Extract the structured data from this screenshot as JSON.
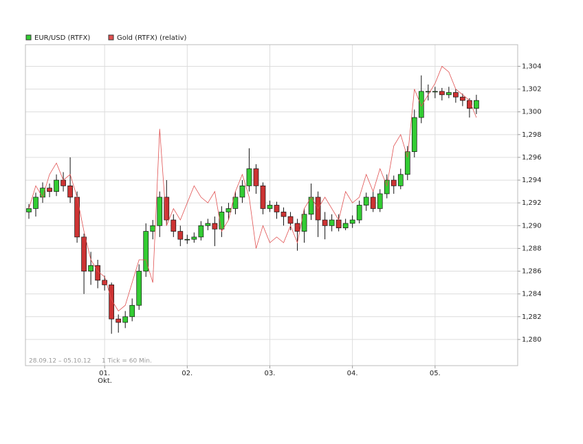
{
  "chart_data": {
    "type": "candlestick",
    "x": [
      -22,
      -20,
      -18,
      -16,
      -14,
      -12,
      -10,
      -8,
      -6,
      -4,
      -2,
      0,
      2,
      4,
      6,
      8,
      10,
      12,
      14,
      16,
      18,
      20,
      22,
      24,
      26,
      28,
      30,
      32,
      34,
      36,
      38,
      40,
      42,
      44,
      46,
      48,
      50,
      52,
      54,
      56,
      58,
      60,
      62,
      64,
      66,
      68,
      70,
      72,
      74,
      76,
      78,
      80,
      82,
      84,
      86,
      88,
      90,
      92,
      94,
      96,
      98,
      100,
      102,
      104,
      106,
      108
    ],
    "xlim": [
      -23,
      120
    ],
    "xticks": [
      {
        "value": 0,
        "label": "01."
      },
      {
        "value": 24,
        "label": "02."
      },
      {
        "value": 48,
        "label": "03."
      },
      {
        "value": 72,
        "label": "04."
      },
      {
        "value": 96,
        "label": "05."
      }
    ],
    "x_sublabel": "Okt.",
    "ylim": [
      1.2777,
      1.3059
    ],
    "yticks": [
      {
        "value": 1.28,
        "label": "1,280"
      },
      {
        "value": 1.282,
        "label": "1,282"
      },
      {
        "value": 1.284,
        "label": "1,284"
      },
      {
        "value": 1.286,
        "label": "1,286"
      },
      {
        "value": 1.288,
        "label": "1,288"
      },
      {
        "value": 1.29,
        "label": "1,290"
      },
      {
        "value": 1.292,
        "label": "1,292"
      },
      {
        "value": 1.294,
        "label": "1,294"
      },
      {
        "value": 1.296,
        "label": "1,296"
      },
      {
        "value": 1.298,
        "label": "1,298"
      },
      {
        "value": 1.3,
        "label": "1,300"
      },
      {
        "value": 1.302,
        "label": "1,302"
      },
      {
        "value": 1.304,
        "label": "1,304"
      }
    ],
    "grid": true,
    "date_range": "28.09.12 – 05.10.12",
    "interval_note": "1 Tick = 60 Min.",
    "series": [
      {
        "name": "EUR/USD (RTFX)",
        "type": "candlestick",
        "up_color": "#33cc33",
        "down_color": "#cc3333",
        "open": [
          1.2912,
          1.2915,
          1.2925,
          1.2933,
          1.293,
          1.294,
          1.2935,
          1.2925,
          1.289,
          1.286,
          1.2865,
          1.2852,
          1.2848,
          1.2818,
          1.2815,
          1.282,
          1.283,
          1.286,
          1.2895,
          1.29,
          1.2925,
          1.2905,
          1.2895,
          1.2888,
          1.2888,
          1.289,
          1.29,
          1.2902,
          1.2897,
          1.2912,
          1.2915,
          1.2925,
          1.2935,
          1.295,
          1.2935,
          1.2915,
          1.2918,
          1.2912,
          1.2908,
          1.2902,
          1.2895,
          1.291,
          1.2925,
          1.2905,
          1.29,
          1.2905,
          1.2898,
          1.2902,
          1.2905,
          1.2918,
          1.2925,
          1.2915,
          1.2928,
          1.294,
          1.2935,
          1.2945,
          1.2965,
          1.2995,
          1.3018,
          1.3018,
          1.3018,
          1.3015,
          1.3017,
          1.3013,
          1.301,
          1.3003
        ],
        "high": [
          1.2919,
          1.2929,
          1.2938,
          1.2937,
          1.2945,
          1.2947,
          1.296,
          1.293,
          1.2893,
          1.2877,
          1.287,
          1.2856,
          1.285,
          1.2822,
          1.2825,
          1.2836,
          1.2866,
          1.2902,
          1.2905,
          1.293,
          1.294,
          1.291,
          1.29,
          1.2892,
          1.2894,
          1.2904,
          1.2906,
          1.2908,
          1.2917,
          1.292,
          1.293,
          1.294,
          1.2968,
          1.2954,
          1.2938,
          1.2922,
          1.2921,
          1.2916,
          1.2912,
          1.2906,
          1.2915,
          1.2937,
          1.293,
          1.2912,
          1.291,
          1.291,
          1.2906,
          1.2909,
          1.2922,
          1.2929,
          1.293,
          1.2932,
          1.2945,
          1.2944,
          1.295,
          1.297,
          1.3002,
          1.3032,
          1.3024,
          1.3022,
          1.3021,
          1.3022,
          1.302,
          1.3016,
          1.3012,
          1.3015
        ],
        "low": [
          1.2906,
          1.2908,
          1.292,
          1.2925,
          1.2926,
          1.293,
          1.292,
          1.2885,
          1.284,
          1.2848,
          1.2845,
          1.2843,
          1.2805,
          1.2806,
          1.281,
          1.2816,
          1.2826,
          1.2855,
          1.2888,
          1.289,
          1.29,
          1.289,
          1.2882,
          1.2884,
          1.2885,
          1.2887,
          1.2896,
          1.2882,
          1.289,
          1.2905,
          1.291,
          1.292,
          1.293,
          1.2928,
          1.291,
          1.2912,
          1.2906,
          1.29,
          1.2896,
          1.2878,
          1.2885,
          1.2905,
          1.289,
          1.2888,
          1.2895,
          1.2895,
          1.2896,
          1.2898,
          1.2902,
          1.2913,
          1.2912,
          1.2912,
          1.2924,
          1.2928,
          1.2932,
          1.294,
          1.296,
          1.299,
          1.301,
          1.3012,
          1.301,
          1.3012,
          1.3008,
          1.3005,
          1.2995,
          1.2998
        ],
        "close": [
          1.2915,
          1.2925,
          1.2933,
          1.293,
          1.294,
          1.2935,
          1.2925,
          1.289,
          1.286,
          1.2865,
          1.2852,
          1.2848,
          1.2818,
          1.2815,
          1.282,
          1.283,
          1.286,
          1.2895,
          1.29,
          1.2925,
          1.2905,
          1.2895,
          1.2888,
          1.2888,
          1.289,
          1.29,
          1.2902,
          1.2897,
          1.2912,
          1.2915,
          1.2925,
          1.2935,
          1.295,
          1.2935,
          1.2915,
          1.2918,
          1.2912,
          1.2908,
          1.2902,
          1.2895,
          1.291,
          1.2925,
          1.2905,
          1.29,
          1.2905,
          1.2898,
          1.2902,
          1.2905,
          1.2918,
          1.2925,
          1.2915,
          1.2928,
          1.294,
          1.2935,
          1.2945,
          1.2965,
          1.2995,
          1.3018,
          1.3018,
          1.3018,
          1.3015,
          1.3017,
          1.3013,
          1.301,
          1.3003,
          1.301
        ]
      },
      {
        "name": "Gold (RTFX) (relativ)",
        "type": "line",
        "color": "#e05050",
        "values": [
          1.2915,
          1.2935,
          1.2925,
          1.2945,
          1.2955,
          1.294,
          1.2945,
          1.2925,
          1.2895,
          1.287,
          1.286,
          1.2855,
          1.2835,
          1.2825,
          1.283,
          1.285,
          1.287,
          1.287,
          1.285,
          1.2985,
          1.29,
          1.2915,
          1.2905,
          1.292,
          1.2935,
          1.2925,
          1.292,
          1.293,
          1.2895,
          1.2905,
          1.293,
          1.2945,
          1.2925,
          1.288,
          1.29,
          1.2885,
          1.289,
          1.2885,
          1.29,
          1.2885,
          1.2915,
          1.2925,
          1.2915,
          1.2925,
          1.2915,
          1.2905,
          1.293,
          1.292,
          1.2925,
          1.2945,
          1.293,
          1.295,
          1.2935,
          1.297,
          1.298,
          1.296,
          1.302,
          1.3005,
          1.3015,
          1.3025,
          1.304,
          1.3035,
          1.302,
          1.3015,
          1.301,
          1.2995
        ]
      }
    ]
  }
}
